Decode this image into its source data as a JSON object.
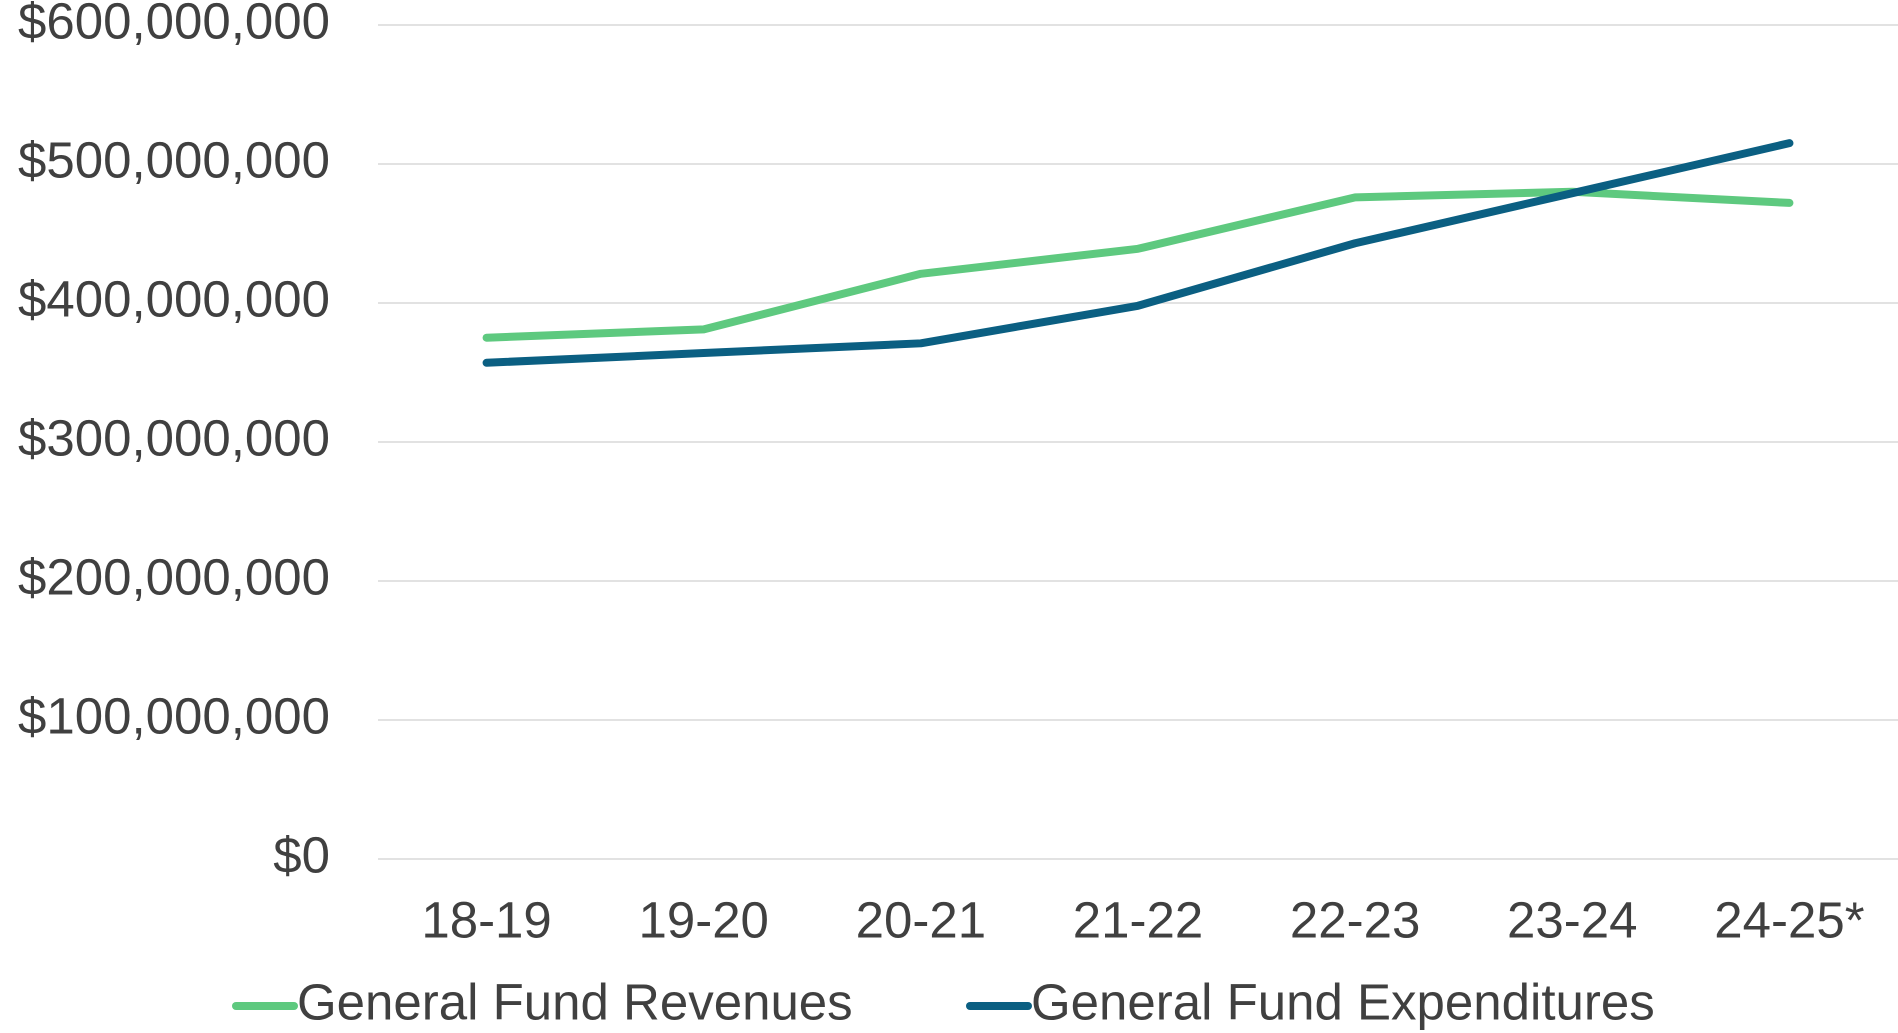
{
  "chart_data": {
    "type": "line",
    "categories": [
      "18-19",
      "19-20",
      "20-21",
      "21-22",
      "22-23",
      "23-24",
      "24-25*"
    ],
    "series": [
      {
        "name": "General Fund Revenues",
        "color": "#5ec97f",
        "values": [
          375000000,
          381000000,
          421000000,
          439000000,
          476000000,
          480000000,
          472000000
        ]
      },
      {
        "name": "General Fund Expenditures",
        "color": "#0b5f82",
        "values": [
          357000000,
          364000000,
          371000000,
          398000000,
          443000000,
          479000000,
          515000000
        ]
      }
    ],
    "ylim": [
      0,
      600000000
    ],
    "yticks": [
      {
        "value": 0,
        "label": "$0"
      },
      {
        "value": 100000000,
        "label": "$100,000,000"
      },
      {
        "value": 200000000,
        "label": "$200,000,000"
      },
      {
        "value": 300000000,
        "label": "$300,000,000"
      },
      {
        "value": 400000000,
        "label": "$400,000,000"
      },
      {
        "value": 500000000,
        "label": "$500,000,000"
      },
      {
        "value": 600000000,
        "label": "$600,000,000"
      }
    ],
    "grid": true,
    "legend": "bottom"
  }
}
